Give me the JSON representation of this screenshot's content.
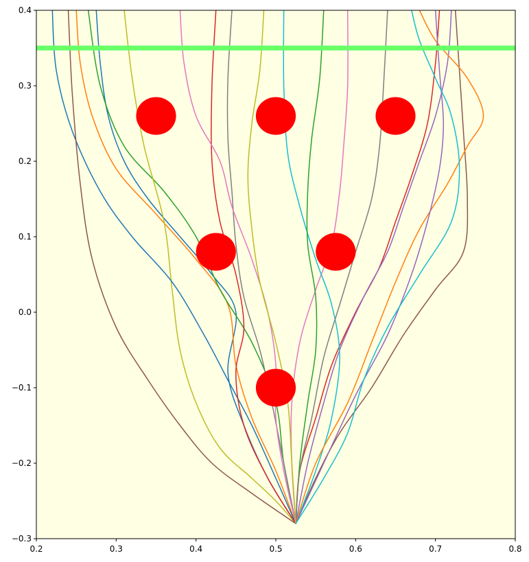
{
  "chart_data": {
    "type": "line",
    "title": "",
    "xlabel": "",
    "ylabel": "",
    "xlim": [
      0.2,
      0.8
    ],
    "ylim": [
      -0.3,
      0.4
    ],
    "xticks": [
      0.2,
      0.3,
      0.4,
      0.5,
      0.6,
      0.7,
      0.8
    ],
    "yticks": [
      -0.3,
      -0.2,
      -0.1,
      0.0,
      0.1,
      0.2,
      0.3,
      0.4
    ],
    "xtick_labels": [
      "0.2",
      "0.3",
      "0.4",
      "0.5",
      "0.6",
      "0.7",
      "0.8"
    ],
    "ytick_labels": [
      "−0.3",
      "−0.2",
      "−0.1",
      "0.0",
      "0.1",
      "0.2",
      "0.3",
      "0.4"
    ],
    "grid": false,
    "background_color": "#ffffe4",
    "target_line": {
      "y": 0.35,
      "color": "#66ff66"
    },
    "obstacles": {
      "color": "#ff0000",
      "radius_x": 0.025,
      "radius_y": 0.025,
      "centers": [
        [
          0.35,
          0.26
        ],
        [
          0.5,
          0.26
        ],
        [
          0.65,
          0.26
        ],
        [
          0.425,
          0.08
        ],
        [
          0.575,
          0.08
        ],
        [
          0.5,
          -0.1
        ]
      ]
    },
    "start_point": [
      0.525,
      -0.28
    ],
    "series_colors": [
      "#1f77b4",
      "#ff7f0e",
      "#2ca02c",
      "#d62728",
      "#9467bd",
      "#8c564b",
      "#e377c2",
      "#7f7f7f",
      "#bcbd22",
      "#17becf"
    ],
    "series": [
      {
        "x": [
          0.525,
          0.49,
          0.46,
          0.44,
          0.45,
          0.42,
          0.38,
          0.34,
          0.31,
          0.29,
          0.28,
          0.275
        ],
        "y": [
          -0.28,
          -0.22,
          -0.15,
          -0.08,
          0.0,
          0.05,
          0.1,
          0.15,
          0.2,
          0.26,
          0.33,
          0.4
        ]
      },
      {
        "x": [
          0.525,
          0.5,
          0.47,
          0.45,
          0.44,
          0.4,
          0.35,
          0.3,
          0.27,
          0.255,
          0.25
        ],
        "y": [
          -0.28,
          -0.21,
          -0.14,
          -0.07,
          0.01,
          0.07,
          0.13,
          0.19,
          0.26,
          0.33,
          0.4
        ]
      },
      {
        "x": [
          0.525,
          0.51,
          0.5,
          0.47,
          0.43,
          0.4,
          0.36,
          0.31,
          0.28,
          0.265
        ],
        "y": [
          -0.28,
          -0.2,
          -0.12,
          -0.04,
          0.03,
          0.1,
          0.16,
          0.22,
          0.3,
          0.4
        ]
      },
      {
        "x": [
          0.525,
          0.53,
          0.55,
          0.57,
          0.6,
          0.63,
          0.65,
          0.67,
          0.69,
          0.7,
          0.705
        ],
        "y": [
          -0.28,
          -0.21,
          -0.14,
          -0.07,
          0.0,
          0.06,
          0.12,
          0.18,
          0.25,
          0.33,
          0.4
        ]
      },
      {
        "x": [
          0.525,
          0.54,
          0.56,
          0.58,
          0.61,
          0.64,
          0.66,
          0.68,
          0.7,
          0.715,
          0.72
        ],
        "y": [
          -0.28,
          -0.2,
          -0.12,
          -0.05,
          0.02,
          0.08,
          0.14,
          0.2,
          0.26,
          0.33,
          0.4
        ]
      },
      {
        "x": [
          0.525,
          0.55,
          0.58,
          0.62,
          0.66,
          0.7,
          0.735,
          0.74,
          0.735,
          0.73,
          0.725
        ],
        "y": [
          -0.28,
          -0.22,
          -0.16,
          -0.1,
          -0.03,
          0.03,
          0.08,
          0.15,
          0.24,
          0.32,
          0.4
        ]
      },
      {
        "x": [
          0.525,
          0.52,
          0.52,
          0.53,
          0.55,
          0.57,
          0.58,
          0.585,
          0.59,
          0.59
        ],
        "y": [
          -0.28,
          -0.2,
          -0.12,
          -0.04,
          0.03,
          0.09,
          0.16,
          0.22,
          0.3,
          0.4
        ]
      },
      {
        "x": [
          0.525,
          0.51,
          0.495,
          0.48,
          0.46,
          0.45,
          0.445,
          0.44,
          0.44,
          0.445
        ],
        "y": [
          -0.28,
          -0.2,
          -0.12,
          -0.05,
          0.02,
          0.09,
          0.16,
          0.23,
          0.31,
          0.4
        ]
      },
      {
        "x": [
          0.525,
          0.5,
          0.47,
          0.43,
          0.4,
          0.38,
          0.37,
          0.36,
          0.335,
          0.32,
          0.31
        ],
        "y": [
          -0.28,
          -0.25,
          -0.22,
          -0.18,
          -0.12,
          -0.05,
          0.03,
          0.12,
          0.22,
          0.31,
          0.4
        ]
      },
      {
        "x": [
          0.525,
          0.55,
          0.57,
          0.58,
          0.57,
          0.55,
          0.53,
          0.515,
          0.51,
          0.51
        ],
        "y": [
          -0.28,
          -0.21,
          -0.14,
          -0.06,
          0.01,
          0.07,
          0.14,
          0.21,
          0.3,
          0.4
        ]
      },
      {
        "x": [
          0.525,
          0.5,
          0.47,
          0.44,
          0.41,
          0.37,
          0.32,
          0.28,
          0.245,
          0.225,
          0.22
        ],
        "y": [
          -0.28,
          -0.22,
          -0.15,
          -0.09,
          -0.03,
          0.04,
          0.1,
          0.16,
          0.24,
          0.32,
          0.4
        ]
      },
      {
        "x": [
          0.525,
          0.55,
          0.59,
          0.62,
          0.65,
          0.68,
          0.715,
          0.74,
          0.76,
          0.74,
          0.7,
          0.68
        ],
        "y": [
          -0.28,
          -0.2,
          -0.12,
          -0.04,
          0.04,
          0.11,
          0.17,
          0.22,
          0.26,
          0.31,
          0.36,
          0.4
        ]
      },
      {
        "x": [
          0.525,
          0.53,
          0.54,
          0.55,
          0.55,
          0.54,
          0.54,
          0.545,
          0.555,
          0.56
        ],
        "y": [
          -0.28,
          -0.2,
          -0.12,
          -0.05,
          0.02,
          0.09,
          0.16,
          0.23,
          0.31,
          0.4
        ]
      },
      {
        "x": [
          0.525,
          0.49,
          0.46,
          0.45,
          0.46,
          0.45,
          0.43,
          0.42,
          0.42,
          0.425
        ],
        "y": [
          -0.28,
          -0.22,
          -0.15,
          -0.08,
          -0.02,
          0.05,
          0.12,
          0.2,
          0.3,
          0.4
        ]
      },
      {
        "x": [
          0.525,
          0.56,
          0.6,
          0.64,
          0.67,
          0.69,
          0.705,
          0.71,
          0.705,
          0.7
        ],
        "y": [
          -0.28,
          -0.2,
          -0.11,
          -0.03,
          0.05,
          0.12,
          0.19,
          0.25,
          0.32,
          0.4
        ]
      },
      {
        "x": [
          0.525,
          0.47,
          0.42,
          0.38,
          0.34,
          0.3,
          0.27,
          0.255,
          0.245,
          0.24
        ],
        "y": [
          -0.28,
          -0.24,
          -0.2,
          -0.15,
          -0.09,
          -0.02,
          0.07,
          0.17,
          0.29,
          0.4
        ]
      },
      {
        "x": [
          0.525,
          0.51,
          0.5,
          0.5,
          0.49,
          0.47,
          0.445,
          0.43,
          0.4,
          0.385,
          0.38
        ],
        "y": [
          -0.28,
          -0.21,
          -0.14,
          -0.07,
          0.0,
          0.07,
          0.14,
          0.2,
          0.26,
          0.33,
          0.4
        ]
      },
      {
        "x": [
          0.525,
          0.53,
          0.545,
          0.56,
          0.58,
          0.6,
          0.62,
          0.63,
          0.635,
          0.64
        ],
        "y": [
          -0.28,
          -0.21,
          -0.14,
          -0.06,
          0.01,
          0.08,
          0.15,
          0.22,
          0.3,
          0.4
        ]
      },
      {
        "x": [
          0.525,
          0.52,
          0.515,
          0.5,
          0.48,
          0.47,
          0.465,
          0.47,
          0.48,
          0.485
        ],
        "y": [
          -0.28,
          -0.2,
          -0.12,
          -0.04,
          0.04,
          0.11,
          0.18,
          0.25,
          0.32,
          0.4
        ]
      },
      {
        "x": [
          0.525,
          0.56,
          0.59,
          0.61,
          0.64,
          0.68,
          0.72,
          0.73,
          0.72,
          0.7,
          0.68,
          0.67
        ],
        "y": [
          -0.28,
          -0.22,
          -0.16,
          -0.09,
          -0.02,
          0.05,
          0.12,
          0.19,
          0.26,
          0.31,
          0.36,
          0.4
        ]
      }
    ]
  }
}
